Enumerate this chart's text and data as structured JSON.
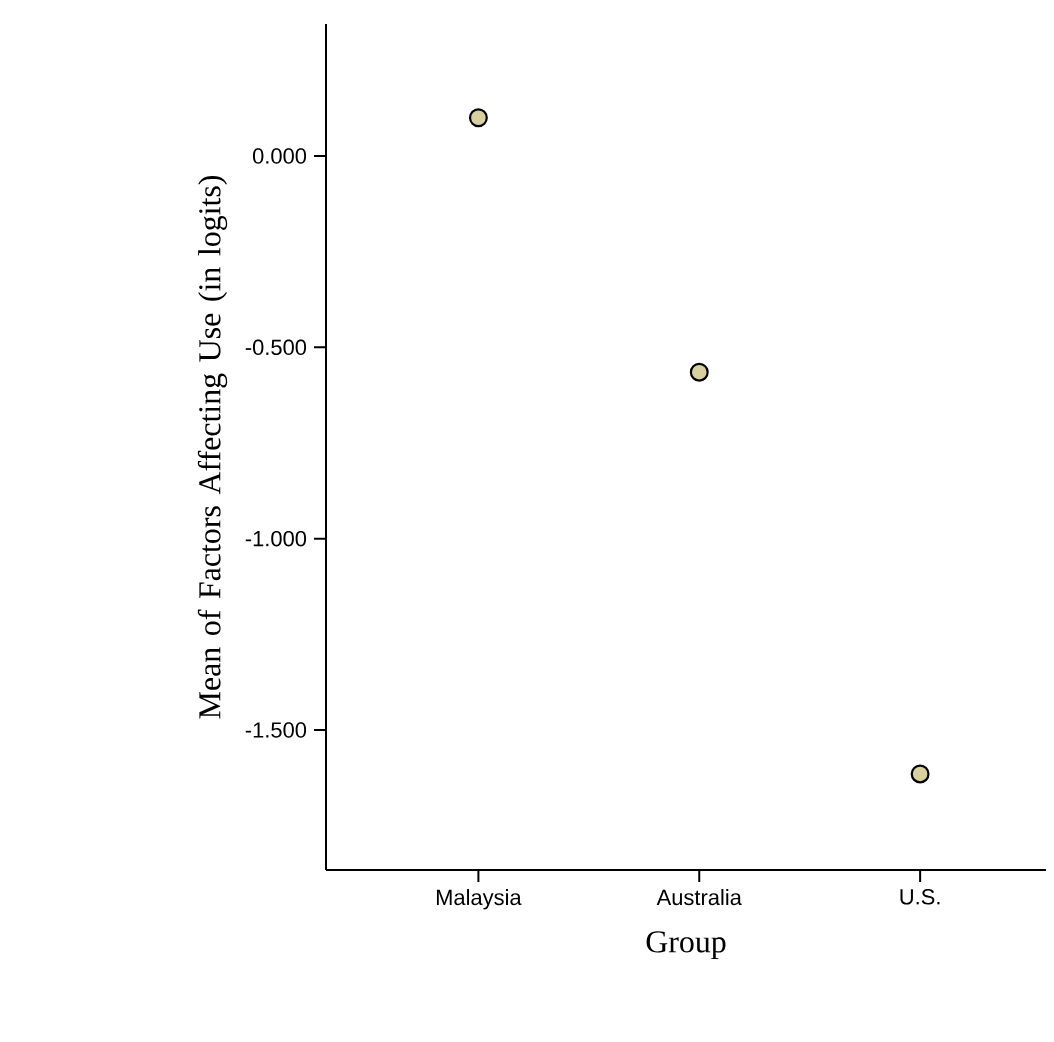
{
  "chart_data": {
    "type": "scatter",
    "xlabel": "Group",
    "ylabel": "Mean of Factors Affecting Use (in logits)",
    "categories": [
      "Malaysia",
      "Australia",
      "U.S."
    ],
    "series": [
      {
        "color": "#d8d0a0",
        "values": [
          0.1,
          -0.565,
          -1.615
        ]
      }
    ],
    "ylim": [
      -1.866,
      0.345
    ],
    "yticks": [
      {
        "value": 0,
        "label": "0.000"
      },
      {
        "value": -0.5,
        "label": "-0.500"
      },
      {
        "value": -1,
        "label": "-1.000"
      },
      {
        "value": -1.5,
        "label": "-1.500"
      }
    ],
    "marker": "circle"
  }
}
